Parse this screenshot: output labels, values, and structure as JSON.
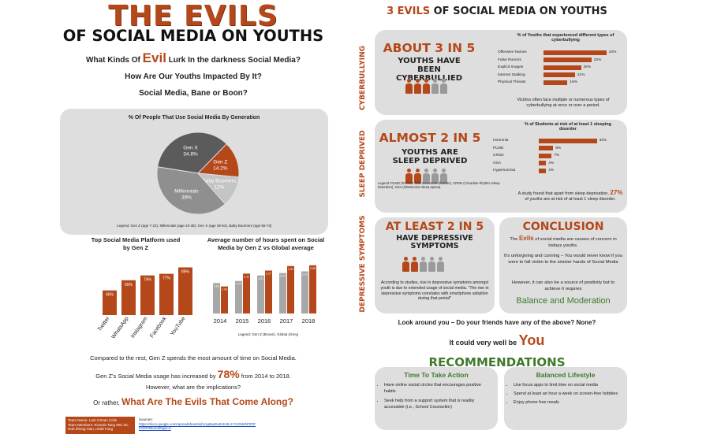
{
  "left": {
    "title_line1": "THE EVILS",
    "title_line2": "OF SOCIAL MEDIA ON YOUTHS",
    "q1_pre": "What Kinds Of ",
    "q1_evil": "Evil",
    "q1_post": " Lurk In the darkness Social Media?",
    "q2": "How Are Our Youths Impacted By It?",
    "q3": "Social Media, Bane or Boon?",
    "pie_title": "% Of People That Use Social Media By Generation",
    "pie_legend": "Legend: Gen Z (age 7-22), Millennials (age 23-38), Gen X (age 39-54), Baby Boomers (age 55-73)",
    "bar1_title": "Top Social Media Platform used by Gen Z",
    "bar2_title": "Average number of hours spent on Social Media by Gen Z vs Global average",
    "bar2_legend": "Legend: Gen Z (Brown), Global (Grey)",
    "summary1": "Compared to the rest, Gen Z spends the most amount of time on Social Media.",
    "summary2_pre": "Gen Z's Social Media usage has increased by ",
    "summary2_pct": "78%",
    "summary2_post": " from 2014 to 2018.",
    "summary3": "However, what are the implications?",
    "summary4_pre": "Or rather, ",
    "summary4_big": "What Are The Evils That Come Along?",
    "team_name": "Team Name: Last 3 Brain Cells",
    "team_members": "Team Members: Ricardo Tang Wei Jie, Goh Zhong Sian, Heidi Fong",
    "sources_label": "Sources:",
    "sources_link": "https://docs.google.com/spreadsheets/d/1Ag9aoEuEvtv3LXYr1GWrhFtFtFhO0FfMk/edit#gid=0"
  },
  "right": {
    "title_num": "3 EVILS",
    "title_rest": " OF SOCIAL MEDIA ON YOUTHS",
    "side_labels": [
      "CYBERBULLYING",
      "SLEEP DEPRIVED",
      "DEPRESSIVE SYMPTOMS"
    ],
    "cyber": {
      "big": "ABOUT 3 IN 5",
      "sub": "YOUTHS HAVE BEEN CYBERBULLIED",
      "chart_title": "% of Youths that experienced different types of cyberbullying",
      "note": "Victims often face multiple or numerous types of cyberbullying at once or over a period."
    },
    "sleep": {
      "big": "ALMOST 2 IN 5",
      "sub": "YOUTHS ARE SLEEP DEPRIVED",
      "chart_title": "% of Students at risk of at least 1 sleeping disorder",
      "legend": "Legend: PLMD (Periodic limb movement disorder), CRSD (Circadian Rhythm Sleep Disorders), OSA (Obstructive sleep apnea)",
      "note_pre": "A study found that apart from sleep deprivation, ",
      "note_pct": "27%",
      "note_post": " of youths are at risk of at least 1 sleep disorder."
    },
    "dep": {
      "big": "AT LEAST 2 IN 5",
      "sub": "HAVE DEPRESSIVE SYMPTOMS",
      "note": "According to studies, rise in depressive symptoms amongst youth is due to extended usage of social media. \"The rise in depressive symptoms correlates with smartphone adoption during that period\""
    },
    "conclusion": {
      "title": "CONCLUSION",
      "p1_pre": "The ",
      "p1_evils": "Evils",
      "p1_post": " of social media are causes of concern in todays youths.",
      "p2": "It's unforgiving and cunning – You would never know if you were to fall victim to the sinister hands of Social Media",
      "p3": "However, it can also be a source of positivity but to achieve it requires",
      "p4": "Balance and Moderation"
    },
    "look": "Look around you – Do your friends have any of the above? None?",
    "could_pre": "It could very well be ",
    "could_you": "You",
    "rec_title": "RECOMMENDATIONS",
    "rec_left_title": "Time To Take Action",
    "rec_left_items": [
      "Have online social circles that encourages positive habits",
      "Seek help from a support system that is readily accessible (i.e., School Counsellor)"
    ],
    "rec_right_title": "Balanced Lifestyle",
    "rec_right_items": [
      "Use focus apps to limit time on social media",
      "Spend at least an hour a week on screen-free hobbies",
      "Enjoy phone free meals"
    ]
  },
  "chart_data": [
    {
      "type": "pie",
      "title": "% Of People That Use Social Media By Generation",
      "categories": [
        "Gen X",
        "Gen Z",
        "Baby Boomers",
        "Millennials"
      ],
      "values": [
        34.8,
        14.2,
        12,
        39
      ],
      "labels": [
        "34.8%",
        "14.2%",
        "12%",
        "39%"
      ],
      "colors": [
        "#5b5b5b",
        "#b5481a",
        "#c4c4c4",
        "#8f8f8f"
      ]
    },
    {
      "type": "bar",
      "title": "Top Social Media Platform used by Gen Z",
      "categories": [
        "Twitter",
        "WhatsApp",
        "Instagram",
        "Facebook",
        "YouTube"
      ],
      "values": [
        46,
        65,
        74,
        77,
        89
      ],
      "labels": [
        "46%",
        "65%",
        "74%",
        "77%",
        "89%"
      ],
      "ylim": [
        0,
        100
      ]
    },
    {
      "type": "bar",
      "title": "Average number of hours spent on Social Media by Gen Z vs Global average",
      "categories": [
        "2014",
        "2015",
        "2016",
        "2017",
        "2018"
      ],
      "series": [
        {
          "name": "Global",
          "values": [
            1.61,
            1.72,
            2.01,
            2.14,
            2.23
          ],
          "labels": [
            "1.61",
            "1.72",
            "2.01",
            "2.14",
            "2.23"
          ]
        },
        {
          "name": "Gen Z",
          "values": [
            1.43,
            2.11,
            2.27,
            2.51,
            2.55
          ],
          "labels": [
            "1.43",
            "2.11",
            "2.27",
            "2.51",
            "2.55"
          ]
        }
      ],
      "colors": [
        "#a7a7a7",
        "#b5481a"
      ],
      "ylim": [
        0,
        3
      ]
    },
    {
      "type": "bar",
      "orientation": "horizontal",
      "title": "% of Youths that experienced different types of cyberbullying",
      "categories": [
        "Offensive Names",
        "False Rumors",
        "Explicit Images",
        "Internet Stalking",
        "Physical Threats"
      ],
      "values": [
        42,
        32,
        25,
        21,
        16
      ],
      "labels": [
        "42%",
        "32%",
        "25%",
        "21%",
        "16%"
      ]
    },
    {
      "type": "bar",
      "orientation": "horizontal",
      "title": "% of Students at risk of at least 1 sleeping disorder",
      "categories": [
        "Insomnia",
        "PLMD",
        "CRSD",
        "OSA",
        "Hypersomnia"
      ],
      "values": [
        32,
        8,
        7,
        4,
        4
      ],
      "labels": [
        "32%",
        "8%",
        "7%",
        "4%",
        "4%"
      ]
    }
  ]
}
